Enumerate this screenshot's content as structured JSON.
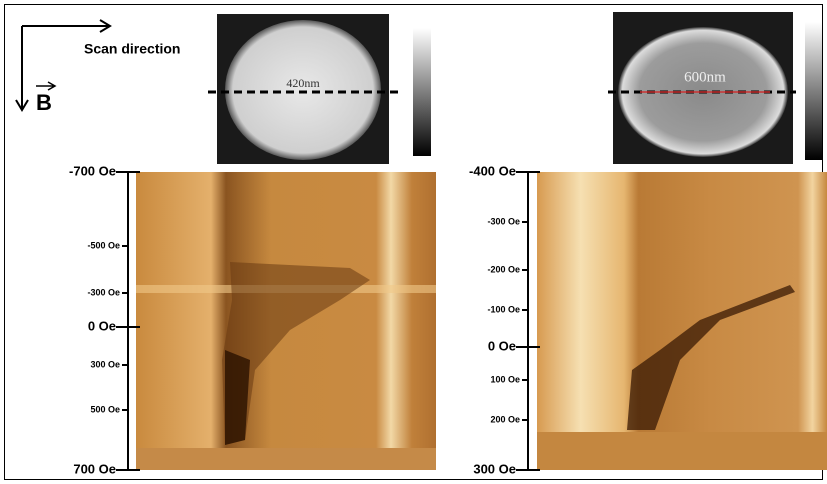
{
  "header": {
    "scan_label": "Scan direction",
    "field_label": "B"
  },
  "panels": [
    {
      "size_label": "420nm",
      "field_ticks": [
        "-700 Oe",
        "-500 Oe",
        "-300 Oe",
        "0 Oe",
        "300 Oe",
        "500 Oe",
        "700 Oe"
      ]
    },
    {
      "size_label": "600nm",
      "field_ticks": [
        "-400 Oe",
        "-300 Oe",
        "-200 Oe",
        "-100 Oe",
        "0 Oe",
        "100 Oe",
        "200 Oe",
        "300 Oe"
      ]
    }
  ]
}
